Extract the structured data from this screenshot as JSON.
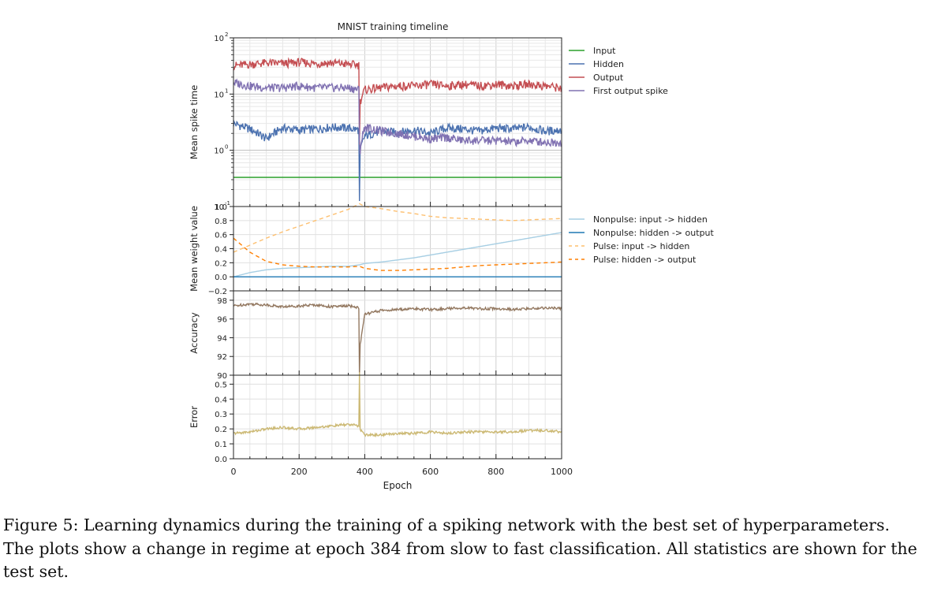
{
  "figure": {
    "title": "MNIST training timeline",
    "xlabel": "Epoch",
    "caption": "Figure 5: Learning dynamics during the training of a spiking network with the best set of hyperparameters. The plots show a change in regime at epoch 384 from slow to fast classification. All statistics are shown for the test set."
  },
  "chart_data": [
    {
      "type": "line",
      "title": "MNIST training timeline",
      "ylabel": "Mean spike time",
      "yscale": "log",
      "xlim": [
        0,
        1000
      ],
      "ylim": [
        0.1,
        100
      ],
      "yticks": [
        "10^-1",
        "10^0",
        "10^1",
        "10^2"
      ],
      "grid": true,
      "legend": "right",
      "x": [
        0,
        50,
        100,
        150,
        200,
        250,
        300,
        350,
        383,
        384,
        385,
        400,
        450,
        500,
        550,
        600,
        650,
        700,
        750,
        800,
        850,
        900,
        950,
        1000
      ],
      "series": [
        {
          "name": "Input",
          "color": "#2ca02c",
          "values": [
            0.33,
            0.33,
            0.33,
            0.33,
            0.33,
            0.33,
            0.33,
            0.33,
            0.33,
            0.33,
            0.33,
            0.33,
            0.33,
            0.33,
            0.33,
            0.33,
            0.33,
            0.33,
            0.33,
            0.33,
            0.33,
            0.33,
            0.33,
            0.33
          ]
        },
        {
          "name": "Hidden",
          "color": "#4c72b0",
          "values": [
            3.0,
            2.4,
            1.6,
            2.5,
            2.3,
            2.4,
            2.6,
            2.5,
            2.3,
            0.12,
            0.9,
            1.8,
            2.2,
            2.1,
            2.3,
            2.0,
            2.5,
            2.4,
            2.2,
            2.5,
            2.4,
            2.6,
            2.2,
            2.3
          ]
        },
        {
          "name": "Output",
          "color": "#c44e52",
          "values": [
            32,
            34,
            36,
            35,
            37,
            35,
            36,
            34,
            33,
            1.5,
            7,
            12,
            13,
            14,
            14,
            15,
            14,
            15,
            14,
            15,
            14,
            15,
            14,
            13
          ]
        },
        {
          "name": "First output spike",
          "color": "#8172b2",
          "values": [
            16,
            14,
            13,
            13,
            14,
            13,
            13,
            13,
            12,
            1.5,
            0.9,
            2.6,
            2.2,
            2.0,
            1.8,
            1.6,
            1.7,
            1.5,
            1.5,
            1.5,
            1.4,
            1.5,
            1.4,
            1.4
          ]
        }
      ]
    },
    {
      "type": "line",
      "ylabel": "Mean weight value",
      "xlim": [
        0,
        1000
      ],
      "ylim": [
        -0.2,
        1.0
      ],
      "yticks": [
        -0.2,
        0.0,
        0.2,
        0.4,
        0.6,
        0.8,
        1.0
      ],
      "grid": true,
      "legend": "right",
      "x": [
        0,
        50,
        100,
        150,
        200,
        250,
        300,
        350,
        384,
        400,
        450,
        500,
        550,
        600,
        650,
        700,
        750,
        800,
        850,
        900,
        950,
        1000
      ],
      "series": [
        {
          "name": "Nonpulse: input -> hidden",
          "color": "#a6cee3",
          "style": "solid",
          "values": [
            0.0,
            0.06,
            0.1,
            0.12,
            0.13,
            0.14,
            0.15,
            0.15,
            0.17,
            0.19,
            0.21,
            0.24,
            0.27,
            0.31,
            0.35,
            0.39,
            0.43,
            0.47,
            0.51,
            0.55,
            0.59,
            0.63
          ]
        },
        {
          "name": "Nonpulse: hidden -> output",
          "color": "#1f78b4",
          "style": "solid",
          "values": [
            0.0,
            0.0,
            0.0,
            0.0,
            0.0,
            0.0,
            0.0,
            0.0,
            0.0,
            0.0,
            0.0,
            0.0,
            0.0,
            0.0,
            0.0,
            0.0,
            0.0,
            0.0,
            0.0,
            0.0,
            0.0,
            0.0
          ]
        },
        {
          "name": "Pulse: input -> hidden",
          "color": "#fdbf6f",
          "style": "dashed",
          "values": [
            0.35,
            0.45,
            0.55,
            0.64,
            0.72,
            0.8,
            0.88,
            0.96,
            1.04,
            1.0,
            0.97,
            0.93,
            0.9,
            0.86,
            0.84,
            0.83,
            0.82,
            0.81,
            0.8,
            0.81,
            0.82,
            0.83
          ]
        },
        {
          "name": "Pulse: hidden -> output",
          "color": "#ff7f00",
          "style": "dashed",
          "values": [
            0.55,
            0.35,
            0.22,
            0.17,
            0.15,
            0.14,
            0.14,
            0.14,
            0.15,
            0.12,
            0.09,
            0.09,
            0.1,
            0.11,
            0.12,
            0.14,
            0.16,
            0.17,
            0.18,
            0.19,
            0.2,
            0.21
          ]
        }
      ]
    },
    {
      "type": "line",
      "ylabel": "Accuracy",
      "xlim": [
        0,
        1000
      ],
      "ylim": [
        90,
        99
      ],
      "yticks": [
        90,
        92,
        94,
        96,
        98
      ],
      "grid": true,
      "x": [
        0,
        50,
        100,
        150,
        200,
        250,
        300,
        350,
        383,
        384,
        385,
        400,
        450,
        500,
        550,
        600,
        650,
        700,
        750,
        800,
        850,
        900,
        950,
        1000
      ],
      "series": [
        {
          "name": "",
          "color": "#937860",
          "values": [
            97.4,
            97.6,
            97.5,
            97.3,
            97.4,
            97.5,
            97.3,
            97.4,
            97.2,
            90.0,
            93.0,
            96.5,
            96.9,
            97.0,
            97.1,
            97.0,
            97.1,
            97.2,
            97.1,
            97.1,
            97.0,
            97.1,
            97.2,
            97.1
          ]
        }
      ]
    },
    {
      "type": "line",
      "ylabel": "Error",
      "xlim": [
        0,
        1000
      ],
      "ylim": [
        0.0,
        0.56
      ],
      "yticks": [
        0.0,
        0.1,
        0.2,
        0.3,
        0.4,
        0.5
      ],
      "grid": true,
      "x": [
        0,
        50,
        100,
        150,
        200,
        250,
        300,
        350,
        383,
        384,
        385,
        400,
        450,
        500,
        550,
        600,
        650,
        700,
        750,
        800,
        850,
        900,
        950,
        1000
      ],
      "series": [
        {
          "name": "",
          "color": "#ccb974",
          "values": [
            0.17,
            0.18,
            0.2,
            0.21,
            0.2,
            0.21,
            0.22,
            0.23,
            0.22,
            0.58,
            0.2,
            0.16,
            0.16,
            0.17,
            0.17,
            0.18,
            0.17,
            0.18,
            0.18,
            0.18,
            0.18,
            0.19,
            0.19,
            0.18
          ]
        }
      ]
    }
  ]
}
